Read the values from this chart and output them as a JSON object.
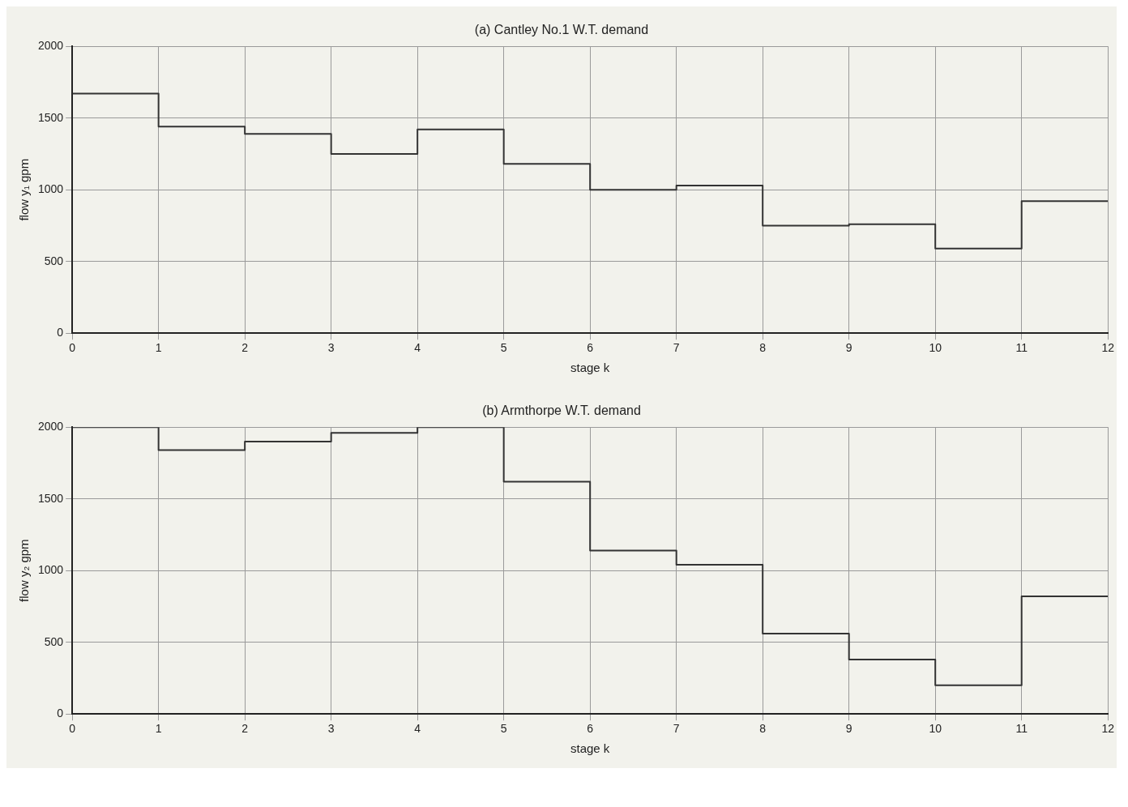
{
  "chart_data": [
    {
      "type": "step",
      "title": "(a) Cantley No.1 W.T. demand",
      "xlabel": "stage k",
      "ylabel": "flow y₁ gpm",
      "x": [
        0,
        1,
        2,
        3,
        4,
        5,
        6,
        7,
        8,
        9,
        10,
        11,
        12
      ],
      "series": [
        {
          "color": "#333333",
          "values": [
            1670,
            1440,
            1390,
            1250,
            1420,
            1180,
            1000,
            1030,
            750,
            760,
            590,
            920,
            920
          ]
        }
      ],
      "xlim": [
        0,
        12
      ],
      "xticks": [
        0,
        1,
        2,
        3,
        4,
        5,
        6,
        7,
        8,
        9,
        10,
        11,
        12
      ],
      "ylim": [
        0,
        2000
      ],
      "yticks": [
        0,
        500,
        1000,
        1500,
        2000
      ],
      "grid": true,
      "legend": false
    },
    {
      "type": "step",
      "title": "(b) Armthorpe W.T. demand",
      "xlabel": "stage k",
      "ylabel": "flow y₂ gpm",
      "x": [
        0,
        1,
        2,
        3,
        4,
        5,
        6,
        7,
        8,
        9,
        10,
        11,
        12
      ],
      "series": [
        {
          "color": "#333333",
          "values": [
            2000,
            1840,
            1900,
            1960,
            2000,
            1620,
            1140,
            1040,
            560,
            380,
            200,
            820,
            820
          ]
        }
      ],
      "xlim": [
        0,
        12
      ],
      "xticks": [
        0,
        1,
        2,
        3,
        4,
        5,
        6,
        7,
        8,
        9,
        10,
        11,
        12
      ],
      "ylim": [
        0,
        2000
      ],
      "yticks": [
        0,
        500,
        1000,
        1500,
        2000
      ],
      "grid": true,
      "legend": false
    }
  ]
}
